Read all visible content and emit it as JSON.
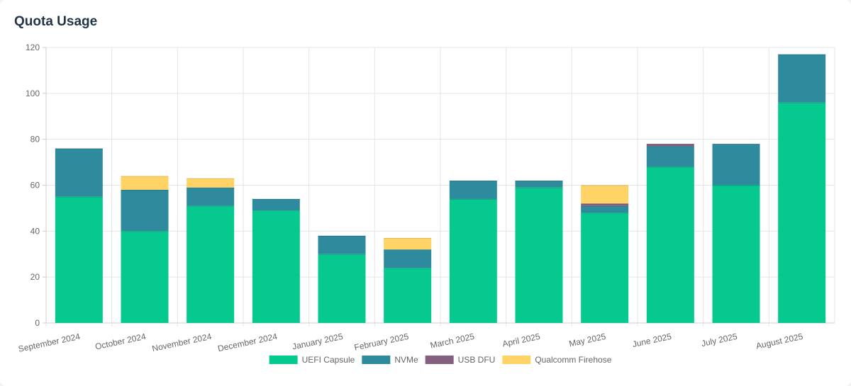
{
  "page": {
    "title": "Quota Usage"
  },
  "chart_data": {
    "type": "bar",
    "stacked": true,
    "title": "Quota Usage",
    "xlabel": "",
    "ylabel": "",
    "ylim": [
      0,
      120
    ],
    "yticks": [
      0,
      20,
      40,
      60,
      80,
      100,
      120
    ],
    "grid": true,
    "legend_position": "bottom",
    "categories": [
      "September 2024",
      "October 2024",
      "November 2024",
      "December 2024",
      "January 2025",
      "February 2025",
      "March 2025",
      "April 2025",
      "May 2025",
      "June 2025",
      "July 2025",
      "August 2025"
    ],
    "series": [
      {
        "name": "UEFI Capsule",
        "color": "#06c98f",
        "values": [
          55,
          40,
          51,
          49,
          30,
          24,
          54,
          59,
          48,
          68,
          60,
          96
        ]
      },
      {
        "name": "NVMe",
        "color": "#2e8b9e",
        "values": [
          21,
          18,
          8,
          5,
          8,
          8,
          8,
          3,
          3,
          9,
          18,
          21
        ]
      },
      {
        "name": "USB DFU",
        "color": "#845f80",
        "values": [
          0,
          0,
          0,
          0,
          0,
          0,
          0,
          0,
          1,
          1,
          0,
          0
        ]
      },
      {
        "name": "Qualcomm Firehose",
        "color": "#ffd366",
        "values": [
          0,
          6,
          4,
          0,
          0,
          5,
          0,
          0,
          8,
          0,
          0,
          0
        ]
      }
    ]
  }
}
